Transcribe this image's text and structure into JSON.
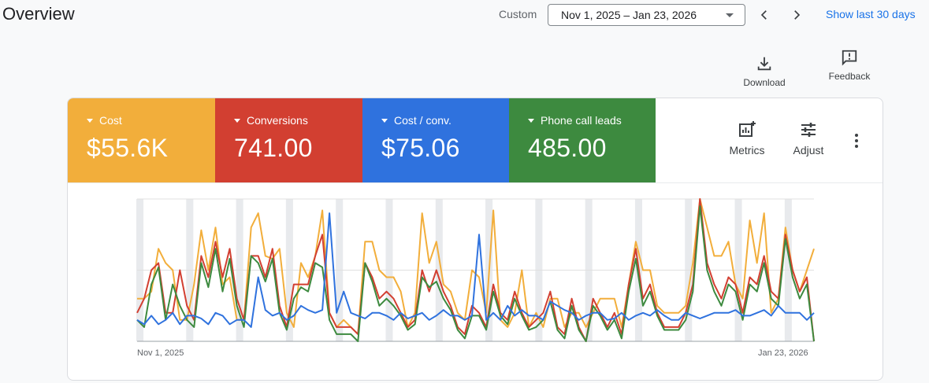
{
  "header": {
    "title": "Overview",
    "range_type": "Custom",
    "date_range": "Nov 1, 2025 – Jan 23, 2026",
    "show_last": "Show last 30 days"
  },
  "toolbar": {
    "download_label": "Download",
    "feedback_label": "Feedback"
  },
  "tiles": [
    {
      "label": "Cost",
      "value": "$55.6K",
      "color": "#f2ae3b"
    },
    {
      "label": "Conversions",
      "value": "741.00",
      "color": "#d23f31"
    },
    {
      "label": "Cost / conv.",
      "value": "$75.06",
      "color": "#2f72de"
    },
    {
      "label": "Phone call leads",
      "value": "485.00",
      "color": "#3d8a3f"
    }
  ],
  "card_tools": {
    "metrics_label": "Metrics",
    "adjust_label": "Adjust"
  },
  "chart_data": {
    "type": "line",
    "x_start_label": "Nov 1, 2025",
    "x_end_label": "Jan 23, 2026",
    "ylim": [
      0,
      100
    ],
    "grid": true,
    "series": [
      {
        "color": "#f2ae3b",
        "values": [
          30,
          30,
          35,
          65,
          55,
          50,
          15,
          15,
          40,
          78,
          50,
          80,
          40,
          45,
          15,
          15,
          80,
          90,
          60,
          58,
          65,
          20,
          10,
          55,
          45,
          60,
          92,
          20,
          10,
          15,
          10,
          5,
          70,
          70,
          50,
          45,
          45,
          35,
          10,
          20,
          90,
          55,
          70,
          40,
          35,
          20,
          15,
          50,
          45,
          20,
          92,
          15,
          10,
          20,
          50,
          10,
          20,
          10,
          30,
          30,
          10,
          20,
          20,
          10,
          20,
          30,
          30,
          30,
          10,
          40,
          70,
          50,
          50,
          25,
          20,
          20,
          20,
          25,
          55,
          100,
          80,
          60,
          60,
          70,
          40,
          30,
          85,
          55,
          90,
          20,
          30,
          80,
          50,
          35,
          50,
          65
        ]
      },
      {
        "color": "#d23f31",
        "values": [
          20,
          30,
          50,
          55,
          20,
          20,
          50,
          25,
          15,
          60,
          45,
          70,
          45,
          65,
          30,
          15,
          60,
          60,
          45,
          65,
          25,
          10,
          40,
          40,
          40,
          60,
          75,
          20,
          10,
          10,
          10,
          5,
          55,
          45,
          30,
          35,
          30,
          20,
          10,
          15,
          50,
          35,
          50,
          35,
          25,
          10,
          5,
          25,
          20,
          10,
          40,
          20,
          15,
          35,
          20,
          10,
          15,
          20,
          35,
          10,
          5,
          30,
          10,
          0,
          30,
          20,
          10,
          20,
          5,
          40,
          65,
          30,
          40,
          20,
          10,
          10,
          10,
          20,
          40,
          100,
          55,
          40,
          30,
          45,
          40,
          20,
          45,
          40,
          60,
          35,
          30,
          75,
          50,
          35,
          45,
          0
        ]
      },
      {
        "color": "#3d8a3f",
        "values": [
          15,
          10,
          40,
          52,
          15,
          40,
          25,
          15,
          10,
          55,
          38,
          65,
          35,
          58,
          25,
          10,
          60,
          55,
          42,
          58,
          20,
          8,
          30,
          38,
          35,
          55,
          52,
          15,
          5,
          5,
          5,
          0,
          55,
          42,
          25,
          30,
          25,
          18,
          8,
          12,
          45,
          38,
          42,
          30,
          22,
          8,
          2,
          18,
          18,
          8,
          35,
          18,
          12,
          30,
          18,
          8,
          10,
          15,
          28,
          8,
          2,
          25,
          8,
          0,
          25,
          18,
          8,
          15,
          2,
          35,
          58,
          25,
          35,
          18,
          8,
          8,
          8,
          15,
          35,
          95,
          50,
          35,
          25,
          40,
          35,
          15,
          40,
          35,
          55,
          30,
          25,
          72,
          45,
          30,
          40,
          0
        ]
      },
      {
        "color": "#2f72de",
        "values": [
          15,
          12,
          18,
          12,
          15,
          20,
          12,
          18,
          18,
          16,
          12,
          20,
          18,
          12,
          15,
          15,
          10,
          45,
          22,
          18,
          20,
          15,
          18,
          25,
          22,
          20,
          22,
          90,
          20,
          35,
          20,
          18,
          16,
          20,
          20,
          18,
          15,
          20,
          16,
          18,
          20,
          15,
          18,
          22,
          18,
          18,
          15,
          18,
          75,
          15,
          20,
          15,
          25,
          18,
          22,
          18,
          18,
          15,
          28,
          25,
          22,
          20,
          15,
          18,
          20,
          20,
          15,
          16,
          20,
          15,
          18,
          20,
          18,
          22,
          18,
          15,
          15,
          20,
          18,
          16,
          18,
          20,
          20,
          20,
          22,
          18,
          18,
          20,
          22,
          18,
          25,
          20,
          20,
          20,
          15,
          20
        ]
      }
    ]
  }
}
